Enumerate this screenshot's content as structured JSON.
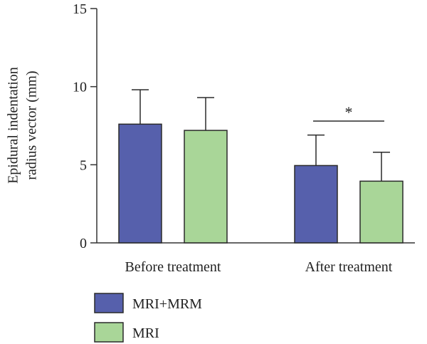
{
  "chart_data": {
    "type": "bar",
    "title": "",
    "xlabel": "",
    "ylabel": [
      "Epidural indentation",
      "radius vector (mm)"
    ],
    "ylim": [
      0,
      15
    ],
    "yticks": [
      "0",
      "5",
      "10",
      "15"
    ],
    "categories": [
      "Before treatment",
      "After treatment"
    ],
    "series": [
      {
        "name": "MRI+MRM",
        "color": "#5660AC",
        "values": [
          7.6,
          4.95
        ],
        "errors": [
          2.2,
          1.95
        ]
      },
      {
        "name": "MRI",
        "color": "#A9D698",
        "values": [
          7.2,
          3.95
        ],
        "errors": [
          2.1,
          1.85
        ]
      }
    ],
    "annotations": [
      {
        "text": "*",
        "category_index": 1
      }
    ],
    "legend": {
      "placement": "bottom-left"
    }
  }
}
